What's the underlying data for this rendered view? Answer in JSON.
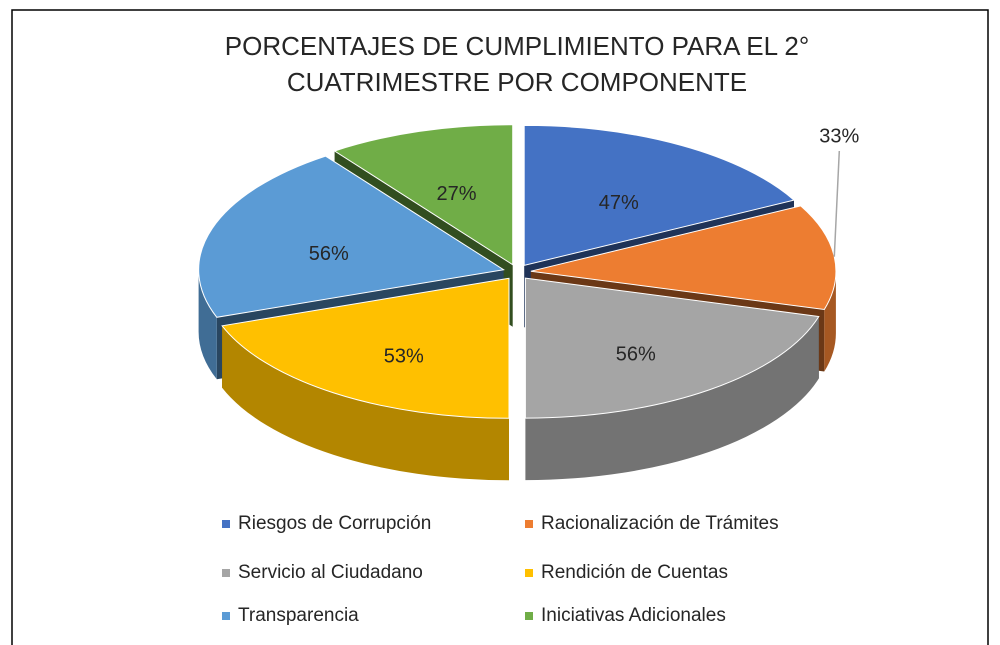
{
  "chart_data": {
    "type": "pie3d",
    "title": [
      "PORCENTAJES DE CUMPLIMIENTO PARA EL 2°",
      "CUATRIMESTRE POR COMPONENTE"
    ],
    "categories": [
      "Riesgos de Corrupción",
      "Racionalización de Trámites",
      "Servicio al Ciudadano",
      "Rendición de Cuentas",
      "Transparencia",
      "Iniciativas Adicionales"
    ],
    "values": [
      47,
      33,
      56,
      53,
      56,
      27
    ],
    "value_labels": [
      "47%",
      "33%",
      "56%",
      "53%",
      "56%",
      "27%"
    ],
    "colors": [
      "#4472c4",
      "#ed7d31",
      "#a5a5a5",
      "#ffc000",
      "#5b9bd5",
      "#70ad47"
    ],
    "legend": "bottom"
  }
}
